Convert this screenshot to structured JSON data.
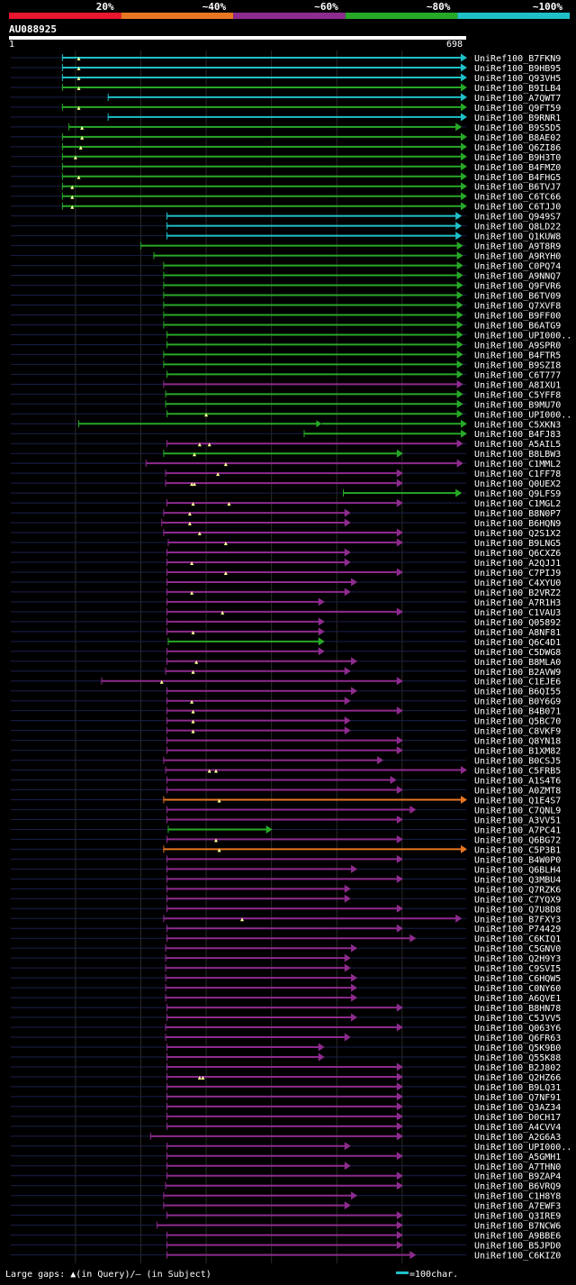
{
  "query_id": "AU088925",
  "axis_start": "1",
  "axis_end": "698",
  "legend": {
    "buckets": [
      {
        "label": "20%",
        "color": "#e8162e"
      },
      {
        "label": "~40%",
        "color": "#e87722"
      },
      {
        "label": "~60%",
        "color": "#8e2b8f"
      },
      {
        "label": "~80%",
        "color": "#27a827"
      },
      {
        "label": "~100%",
        "color": "#1fc0c8"
      }
    ]
  },
  "footer": {
    "gaps_text": "Large gaps: ▲(in Query)/– (in Subject)",
    "scale_text": "=100char."
  },
  "chart_data": {
    "type": "alignment-overview",
    "query_length": 698,
    "identity_colors": {
      "c": "#1fc0c8",
      "g": "#27a827",
      "p": "#8e2b8f",
      "o": "#e87722"
    },
    "rows": [
      {
        "label": "UniRef100_B7FKN9",
        "start": 80,
        "end": 698,
        "c": "c",
        "g": [
          105
        ]
      },
      {
        "label": "UniRef100_B9HB95",
        "start": 80,
        "end": 698,
        "c": "c",
        "g": [
          105
        ]
      },
      {
        "label": "UniRef100_Q93VH5",
        "start": 80,
        "end": 698,
        "c": "c",
        "g": [
          105
        ]
      },
      {
        "label": "UniRef100_B9ILB4",
        "start": 80,
        "end": 698,
        "c": "g",
        "g": [
          105
        ]
      },
      {
        "label": "UniRef100_A7QWT7",
        "start": 150,
        "end": 698,
        "c": "c",
        "g": []
      },
      {
        "label": "UniRef100_Q9FT59",
        "start": 80,
        "end": 698,
        "c": "g",
        "g": [
          105
        ]
      },
      {
        "label": "UniRef100_B9RNR1",
        "start": 150,
        "end": 698,
        "c": "c",
        "g": []
      },
      {
        "label": "UniRef100_B9S5D5",
        "start": 90,
        "end": 690,
        "c": "g",
        "g": [
          110
        ]
      },
      {
        "label": "UniRef100_B8AE02",
        "start": 80,
        "end": 698,
        "c": "g",
        "g": [
          110
        ]
      },
      {
        "label": "UniRef100_Q6ZI86",
        "start": 80,
        "end": 698,
        "c": "g",
        "g": [
          108
        ]
      },
      {
        "label": "UniRef100_B9H3T0",
        "start": 80,
        "end": 698,
        "c": "g",
        "g": [
          100
        ]
      },
      {
        "label": "UniRef100_B4FMZ0",
        "start": 80,
        "end": 698,
        "c": "g",
        "g": []
      },
      {
        "label": "UniRef100_B4FHG5",
        "start": 80,
        "end": 698,
        "c": "g",
        "g": [
          105
        ]
      },
      {
        "label": "UniRef100_B6TVJ7",
        "start": 80,
        "end": 698,
        "c": "g",
        "g": [
          95
        ]
      },
      {
        "label": "UniRef100_C6TC66",
        "start": 80,
        "end": 698,
        "c": "g",
        "g": [
          95
        ]
      },
      {
        "label": "UniRef100_C6TJJ0",
        "start": 80,
        "end": 698,
        "c": "g",
        "g": [
          95
        ]
      },
      {
        "label": "UniRef100_Q949S7",
        "start": 240,
        "end": 690,
        "c": "c",
        "g": []
      },
      {
        "label": "UniRef100_Q8LD22",
        "start": 240,
        "end": 690,
        "c": "c",
        "g": []
      },
      {
        "label": "UniRef100_Q1KUW8",
        "start": 240,
        "end": 690,
        "c": "c",
        "g": []
      },
      {
        "label": "UniRef100_A9T8R9",
        "start": 200,
        "end": 692,
        "c": "g",
        "g": []
      },
      {
        "label": "UniRef100_A9RYH0",
        "start": 220,
        "end": 692,
        "c": "g",
        "g": []
      },
      {
        "label": "UniRef100_C0PQ74",
        "start": 235,
        "end": 692,
        "c": "g",
        "g": []
      },
      {
        "label": "UniRef100_A9NNQ7",
        "start": 235,
        "end": 692,
        "c": "g",
        "g": []
      },
      {
        "label": "UniRef100_Q9FVR6",
        "start": 235,
        "end": 692,
        "c": "g",
        "g": []
      },
      {
        "label": "UniRef100_B6TV09",
        "start": 235,
        "end": 692,
        "c": "g",
        "g": []
      },
      {
        "label": "UniRef100_Q7XVF8",
        "start": 235,
        "end": 692,
        "c": "g",
        "g": []
      },
      {
        "label": "UniRef100_B9FF00",
        "start": 235,
        "end": 692,
        "c": "g",
        "g": []
      },
      {
        "label": "UniRef100_B6ATG9",
        "start": 235,
        "end": 692,
        "c": "g",
        "g": []
      },
      {
        "label": "UniRef100_UPI000..",
        "start": 240,
        "end": 692,
        "c": "g",
        "g": []
      },
      {
        "label": "UniRef100_A9SPR0",
        "start": 240,
        "end": 692,
        "c": "g",
        "g": []
      },
      {
        "label": "UniRef100_B4FTR5",
        "start": 235,
        "end": 692,
        "c": "g",
        "g": []
      },
      {
        "label": "UniRef100_B9SZI8",
        "start": 235,
        "end": 692,
        "c": "g",
        "g": []
      },
      {
        "label": "UniRef100_C6T777",
        "start": 240,
        "end": 692,
        "c": "g",
        "g": []
      },
      {
        "label": "UniRef100_A8IXU1",
        "start": 235,
        "end": 692,
        "c": "p",
        "g": []
      },
      {
        "label": "UniRef100_C5YFF8",
        "start": 238,
        "end": 692,
        "c": "g",
        "g": []
      },
      {
        "label": "UniRef100_B9MU70",
        "start": 238,
        "end": 692,
        "c": "g",
        "g": []
      },
      {
        "label": "UniRef100_UPI000..",
        "start": 240,
        "end": 692,
        "c": "g",
        "g": [
          300
        ]
      },
      {
        "label": "UniRef100_C5XKN3",
        "start": 105,
        "end": 698,
        "c": "g",
        "g": [],
        "split": 470
      },
      {
        "label": "UniRef100_B4FJ83",
        "start": 450,
        "end": 698,
        "c": "g",
        "g": []
      },
      {
        "label": "UniRef100_A5AIL5",
        "start": 240,
        "end": 692,
        "c": "p",
        "g": [
          290,
          305
        ]
      },
      {
        "label": "UniRef100_B8LBW3",
        "start": 235,
        "end": 600,
        "c": "g",
        "g": [
          282
        ]
      },
      {
        "label": "UniRef100_C1MML2",
        "start": 208,
        "end": 692,
        "c": "p",
        "g": [
          330
        ]
      },
      {
        "label": "UniRef100_C1FF78",
        "start": 238,
        "end": 600,
        "c": "p",
        "g": [
          318
        ]
      },
      {
        "label": "UniRef100_Q0UEX2",
        "start": 238,
        "end": 600,
        "c": "p",
        "g": [
          278,
          282
        ]
      },
      {
        "label": "UniRef100_Q9LFS9",
        "start": 510,
        "end": 690,
        "c": "g",
        "g": []
      },
      {
        "label": "UniRef100_C1MGL2",
        "start": 240,
        "end": 600,
        "c": "p",
        "g": [
          280,
          335
        ]
      },
      {
        "label": "UniRef100_B8N0P7",
        "start": 235,
        "end": 520,
        "c": "p",
        "g": [
          275
        ]
      },
      {
        "label": "UniRef100_B6HQN9",
        "start": 232,
        "end": 520,
        "c": "p",
        "g": [
          275
        ]
      },
      {
        "label": "UniRef100_Q2S1X2",
        "start": 235,
        "end": 600,
        "c": "p",
        "g": [
          290
        ]
      },
      {
        "label": "UniRef100_B9LNG5",
        "start": 242,
        "end": 600,
        "c": "p",
        "g": [
          330
        ]
      },
      {
        "label": "UniRef100_Q6CXZ6",
        "start": 240,
        "end": 520,
        "c": "p",
        "g": []
      },
      {
        "label": "UniRef100_A2QJJ1",
        "start": 240,
        "end": 520,
        "c": "p",
        "g": [
          278
        ]
      },
      {
        "label": "UniRef100_C7PIJ9",
        "start": 240,
        "end": 600,
        "c": "p",
        "g": [
          330
        ]
      },
      {
        "label": "UniRef100_C4XYU0",
        "start": 240,
        "end": 530,
        "c": "p",
        "g": []
      },
      {
        "label": "UniRef100_B2VRZ2",
        "start": 240,
        "end": 520,
        "c": "p",
        "g": [
          278
        ]
      },
      {
        "label": "UniRef100_A7R1H3",
        "start": 240,
        "end": 480,
        "c": "p",
        "g": []
      },
      {
        "label": "UniRef100_C1VAU3",
        "start": 240,
        "end": 600,
        "c": "p",
        "g": [
          325
        ]
      },
      {
        "label": "UniRef100_Q05892",
        "start": 240,
        "end": 480,
        "c": "p",
        "g": []
      },
      {
        "label": "UniRef100_A8NF81",
        "start": 240,
        "end": 480,
        "c": "p",
        "g": [
          280
        ]
      },
      {
        "label": "UniRef100_Q6C4D1",
        "start": 242,
        "end": 480,
        "c": "g",
        "g": []
      },
      {
        "label": "UniRef100_C5DWG8",
        "start": 240,
        "end": 480,
        "c": "p",
        "g": []
      },
      {
        "label": "UniRef100_B8MLA0",
        "start": 240,
        "end": 530,
        "c": "p",
        "g": [
          285
        ]
      },
      {
        "label": "UniRef100_B2AVW9",
        "start": 238,
        "end": 520,
        "c": "p",
        "g": [
          280
        ]
      },
      {
        "label": "UniRef100_C1EJE6",
        "start": 140,
        "end": 600,
        "c": "p",
        "g": [
          232
        ]
      },
      {
        "label": "UniRef100_B6QI55",
        "start": 240,
        "end": 530,
        "c": "p",
        "g": []
      },
      {
        "label": "UniRef100_B0Y6G9",
        "start": 240,
        "end": 520,
        "c": "p",
        "g": [
          278
        ]
      },
      {
        "label": "UniRef100_B4B071",
        "start": 240,
        "end": 600,
        "c": "p",
        "g": [
          280
        ]
      },
      {
        "label": "UniRef100_Q5BC70",
        "start": 240,
        "end": 520,
        "c": "p",
        "g": [
          280
        ]
      },
      {
        "label": "UniRef100_C8VKF9",
        "start": 240,
        "end": 520,
        "c": "p",
        "g": [
          280
        ]
      },
      {
        "label": "UniRef100_Q8YN18",
        "start": 240,
        "end": 600,
        "c": "p",
        "g": []
      },
      {
        "label": "UniRef100_B1XM82",
        "start": 240,
        "end": 600,
        "c": "p",
        "g": []
      },
      {
        "label": "UniRef100_B0CSJ5",
        "start": 235,
        "end": 570,
        "c": "p",
        "g": []
      },
      {
        "label": "UniRef100_C5FRB5",
        "start": 238,
        "end": 698,
        "c": "p",
        "g": [
          305,
          315
        ]
      },
      {
        "label": "UniRef100_A1S4T6",
        "start": 240,
        "end": 590,
        "c": "p",
        "g": []
      },
      {
        "label": "UniRef100_A0ZMT8",
        "start": 240,
        "end": 600,
        "c": "p",
        "g": []
      },
      {
        "label": "UniRef100_Q1E4S7",
        "start": 235,
        "end": 698,
        "c": "o",
        "g": [
          320
        ]
      },
      {
        "label": "UniRef100_C7QNL9",
        "start": 240,
        "end": 620,
        "c": "p",
        "g": []
      },
      {
        "label": "UniRef100_A3VV51",
        "start": 240,
        "end": 600,
        "c": "p",
        "g": []
      },
      {
        "label": "UniRef100_A7PC41",
        "start": 242,
        "end": 400,
        "c": "g",
        "g": []
      },
      {
        "label": "UniRef100_Q6BG72",
        "start": 240,
        "end": 600,
        "c": "p",
        "g": [
          315
        ]
      },
      {
        "label": "UniRef100_C5P3B1",
        "start": 235,
        "end": 698,
        "c": "o",
        "g": [
          320
        ]
      },
      {
        "label": "UniRef100_B4W0P0",
        "start": 240,
        "end": 600,
        "c": "p",
        "g": []
      },
      {
        "label": "UniRef100_Q6BLH4",
        "start": 240,
        "end": 530,
        "c": "p",
        "g": []
      },
      {
        "label": "UniRef100_Q3MBU4",
        "start": 240,
        "end": 600,
        "c": "p",
        "g": []
      },
      {
        "label": "UniRef100_Q7RZK6",
        "start": 240,
        "end": 520,
        "c": "p",
        "g": []
      },
      {
        "label": "UniRef100_C7YQX9",
        "start": 240,
        "end": 520,
        "c": "p",
        "g": []
      },
      {
        "label": "UniRef100_Q7U8D8",
        "start": 240,
        "end": 600,
        "c": "p",
        "g": []
      },
      {
        "label": "UniRef100_B7FXY3",
        "start": 235,
        "end": 690,
        "c": "p",
        "g": [
          355
        ]
      },
      {
        "label": "UniRef100_P74429",
        "start": 240,
        "end": 600,
        "c": "p",
        "g": []
      },
      {
        "label": "UniRef100_C6KIQ1",
        "start": 240,
        "end": 620,
        "c": "p",
        "g": []
      },
      {
        "label": "UniRef100_C5GNV0",
        "start": 238,
        "end": 530,
        "c": "p",
        "g": []
      },
      {
        "label": "UniRef100_Q2H9Y3",
        "start": 238,
        "end": 520,
        "c": "p",
        "g": []
      },
      {
        "label": "UniRef100_C9SVI5",
        "start": 238,
        "end": 520,
        "c": "p",
        "g": []
      },
      {
        "label": "UniRef100_C6HQW5",
        "start": 238,
        "end": 530,
        "c": "p",
        "g": []
      },
      {
        "label": "UniRef100_C0NY60",
        "start": 238,
        "end": 530,
        "c": "p",
        "g": []
      },
      {
        "label": "UniRef100_A6QVE1",
        "start": 238,
        "end": 530,
        "c": "p",
        "g": []
      },
      {
        "label": "UniRef100_B8HN78",
        "start": 240,
        "end": 600,
        "c": "p",
        "g": []
      },
      {
        "label": "UniRef100_C5JVV5",
        "start": 240,
        "end": 530,
        "c": "p",
        "g": []
      },
      {
        "label": "UniRef100_Q063Y6",
        "start": 238,
        "end": 600,
        "c": "p",
        "g": []
      },
      {
        "label": "UniRef100_Q6FR63",
        "start": 238,
        "end": 520,
        "c": "p",
        "g": []
      },
      {
        "label": "UniRef100_Q5K9B0",
        "start": 240,
        "end": 480,
        "c": "p",
        "g": []
      },
      {
        "label": "UniRef100_Q55K88",
        "start": 240,
        "end": 480,
        "c": "p",
        "g": []
      },
      {
        "label": "UniRef100_B2J802",
        "start": 240,
        "end": 600,
        "c": "p",
        "g": []
      },
      {
        "label": "UniRef100_Q2HZ66",
        "start": 240,
        "end": 600,
        "c": "p",
        "g": [
          290,
          295
        ]
      },
      {
        "label": "UniRef100_B9LQ31",
        "start": 240,
        "end": 600,
        "c": "p",
        "g": []
      },
      {
        "label": "UniRef100_Q7NF91",
        "start": 240,
        "end": 600,
        "c": "p",
        "g": []
      },
      {
        "label": "UniRef100_Q3AZ34",
        "start": 240,
        "end": 600,
        "c": "p",
        "g": []
      },
      {
        "label": "UniRef100_D0CH17",
        "start": 240,
        "end": 600,
        "c": "p",
        "g": []
      },
      {
        "label": "UniRef100_A4CVV4",
        "start": 240,
        "end": 600,
        "c": "p",
        "g": []
      },
      {
        "label": "UniRef100_A2G6A3",
        "start": 215,
        "end": 600,
        "c": "p",
        "g": []
      },
      {
        "label": "UniRef100_UPI000..",
        "start": 240,
        "end": 520,
        "c": "p",
        "g": []
      },
      {
        "label": "UniRef100_A5GMH1",
        "start": 240,
        "end": 600,
        "c": "p",
        "g": []
      },
      {
        "label": "UniRef100_A7THN0",
        "start": 240,
        "end": 520,
        "c": "p",
        "g": []
      },
      {
        "label": "UniRef100_B9ZAP4",
        "start": 240,
        "end": 600,
        "c": "p",
        "g": []
      },
      {
        "label": "UniRef100_B6VRQ9",
        "start": 238,
        "end": 600,
        "c": "p",
        "g": []
      },
      {
        "label": "UniRef100_C1H8Y8",
        "start": 235,
        "end": 530,
        "c": "p",
        "g": []
      },
      {
        "label": "UniRef100_A7EWF3",
        "start": 235,
        "end": 520,
        "c": "p",
        "g": []
      },
      {
        "label": "UniRef100_Q3IRE9",
        "start": 240,
        "end": 600,
        "c": "p",
        "g": []
      },
      {
        "label": "UniRef100_B7NCW6",
        "start": 225,
        "end": 600,
        "c": "p",
        "g": []
      },
      {
        "label": "UniRef100_A9BBE6",
        "start": 240,
        "end": 600,
        "c": "p",
        "g": []
      },
      {
        "label": "UniRef100_B5JPD0",
        "start": 240,
        "end": 600,
        "c": "p",
        "g": []
      },
      {
        "label": "UniRef100_C6KIZ0",
        "start": 240,
        "end": 620,
        "c": "p",
        "g": []
      }
    ]
  }
}
